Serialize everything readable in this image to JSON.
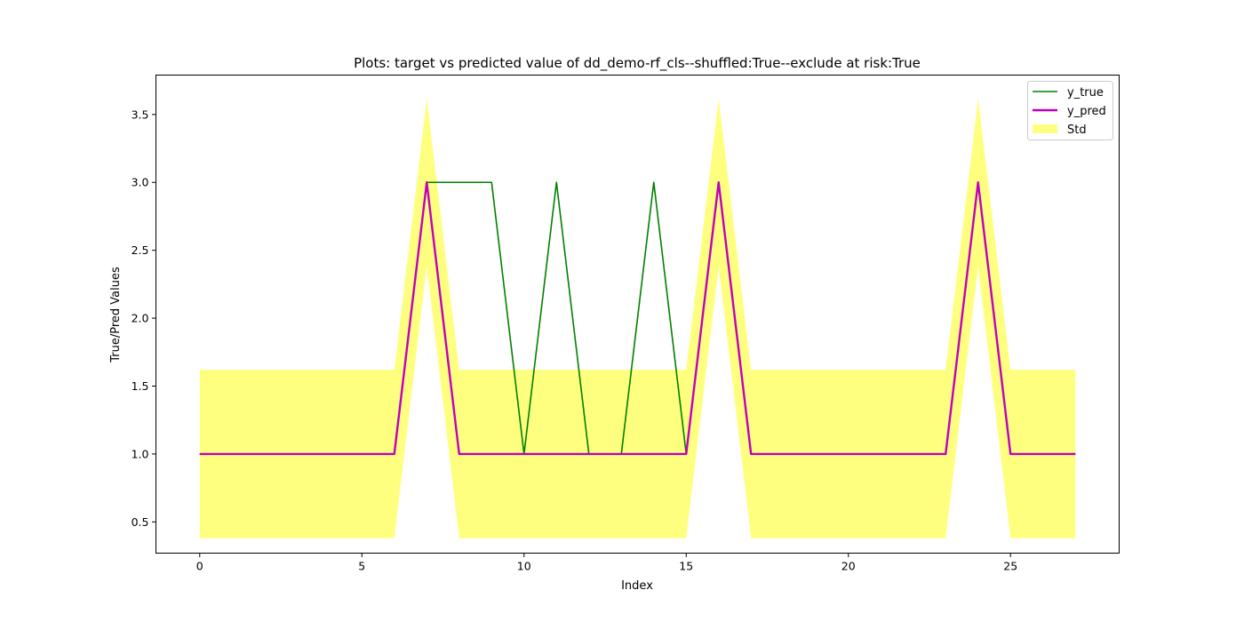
{
  "chart_data": {
    "type": "line",
    "title": "Plots: target vs predicted value of dd_demo-rf_cls--shuffled:True--exclude at risk:True",
    "xlabel": "Index",
    "ylabel": "True/Pred Values",
    "x": [
      0,
      1,
      2,
      3,
      4,
      5,
      6,
      7,
      8,
      9,
      10,
      11,
      12,
      13,
      14,
      15,
      16,
      17,
      18,
      19,
      20,
      21,
      22,
      23,
      24,
      25,
      26,
      27
    ],
    "xlim": [
      -1.35,
      28.35
    ],
    "ylim": [
      0.27,
      3.79
    ],
    "xticks": [
      0,
      5,
      10,
      15,
      20,
      25
    ],
    "yticks": [
      0.5,
      1.0,
      1.5,
      2.0,
      2.5,
      3.0,
      3.5
    ],
    "ytick_labels": [
      "0.5",
      "1.0",
      "1.5",
      "2.0",
      "2.5",
      "3.0",
      "3.5"
    ],
    "series": [
      {
        "name": "y_true",
        "color": "#008000",
        "values": [
          1,
          1,
          1,
          1,
          1,
          1,
          1,
          3,
          3,
          3,
          1,
          3,
          1,
          1,
          3,
          1,
          3,
          1,
          1,
          1,
          1,
          1,
          1,
          1,
          3,
          1,
          1,
          1
        ]
      },
      {
        "name": "y_pred",
        "color": "#bf00bf",
        "values": [
          1,
          1,
          1,
          1,
          1,
          1,
          1,
          3,
          1,
          1,
          1,
          1,
          1,
          1,
          1,
          1,
          3,
          1,
          1,
          1,
          1,
          1,
          1,
          1,
          3,
          1,
          1,
          1
        ]
      }
    ],
    "band": {
      "name": "Std",
      "color": "#ffff00",
      "opacity": 0.5,
      "lower": [
        0.38,
        0.38,
        0.38,
        0.38,
        0.38,
        0.38,
        0.38,
        2.38,
        0.38,
        0.38,
        0.38,
        0.38,
        0.38,
        0.38,
        0.38,
        0.38,
        2.38,
        0.38,
        0.38,
        0.38,
        0.38,
        0.38,
        0.38,
        0.38,
        2.38,
        0.38,
        0.38,
        0.38
      ],
      "upper": [
        1.62,
        1.62,
        1.62,
        1.62,
        1.62,
        1.62,
        1.62,
        3.62,
        1.62,
        1.62,
        1.62,
        1.62,
        1.62,
        1.62,
        1.62,
        1.62,
        3.62,
        1.62,
        1.62,
        1.62,
        1.62,
        1.62,
        1.62,
        1.62,
        3.62,
        1.62,
        1.62,
        1.62
      ]
    },
    "legend": {
      "position": "upper right",
      "entries": [
        "y_true",
        "y_pred",
        "Std"
      ]
    },
    "grid": false
  }
}
